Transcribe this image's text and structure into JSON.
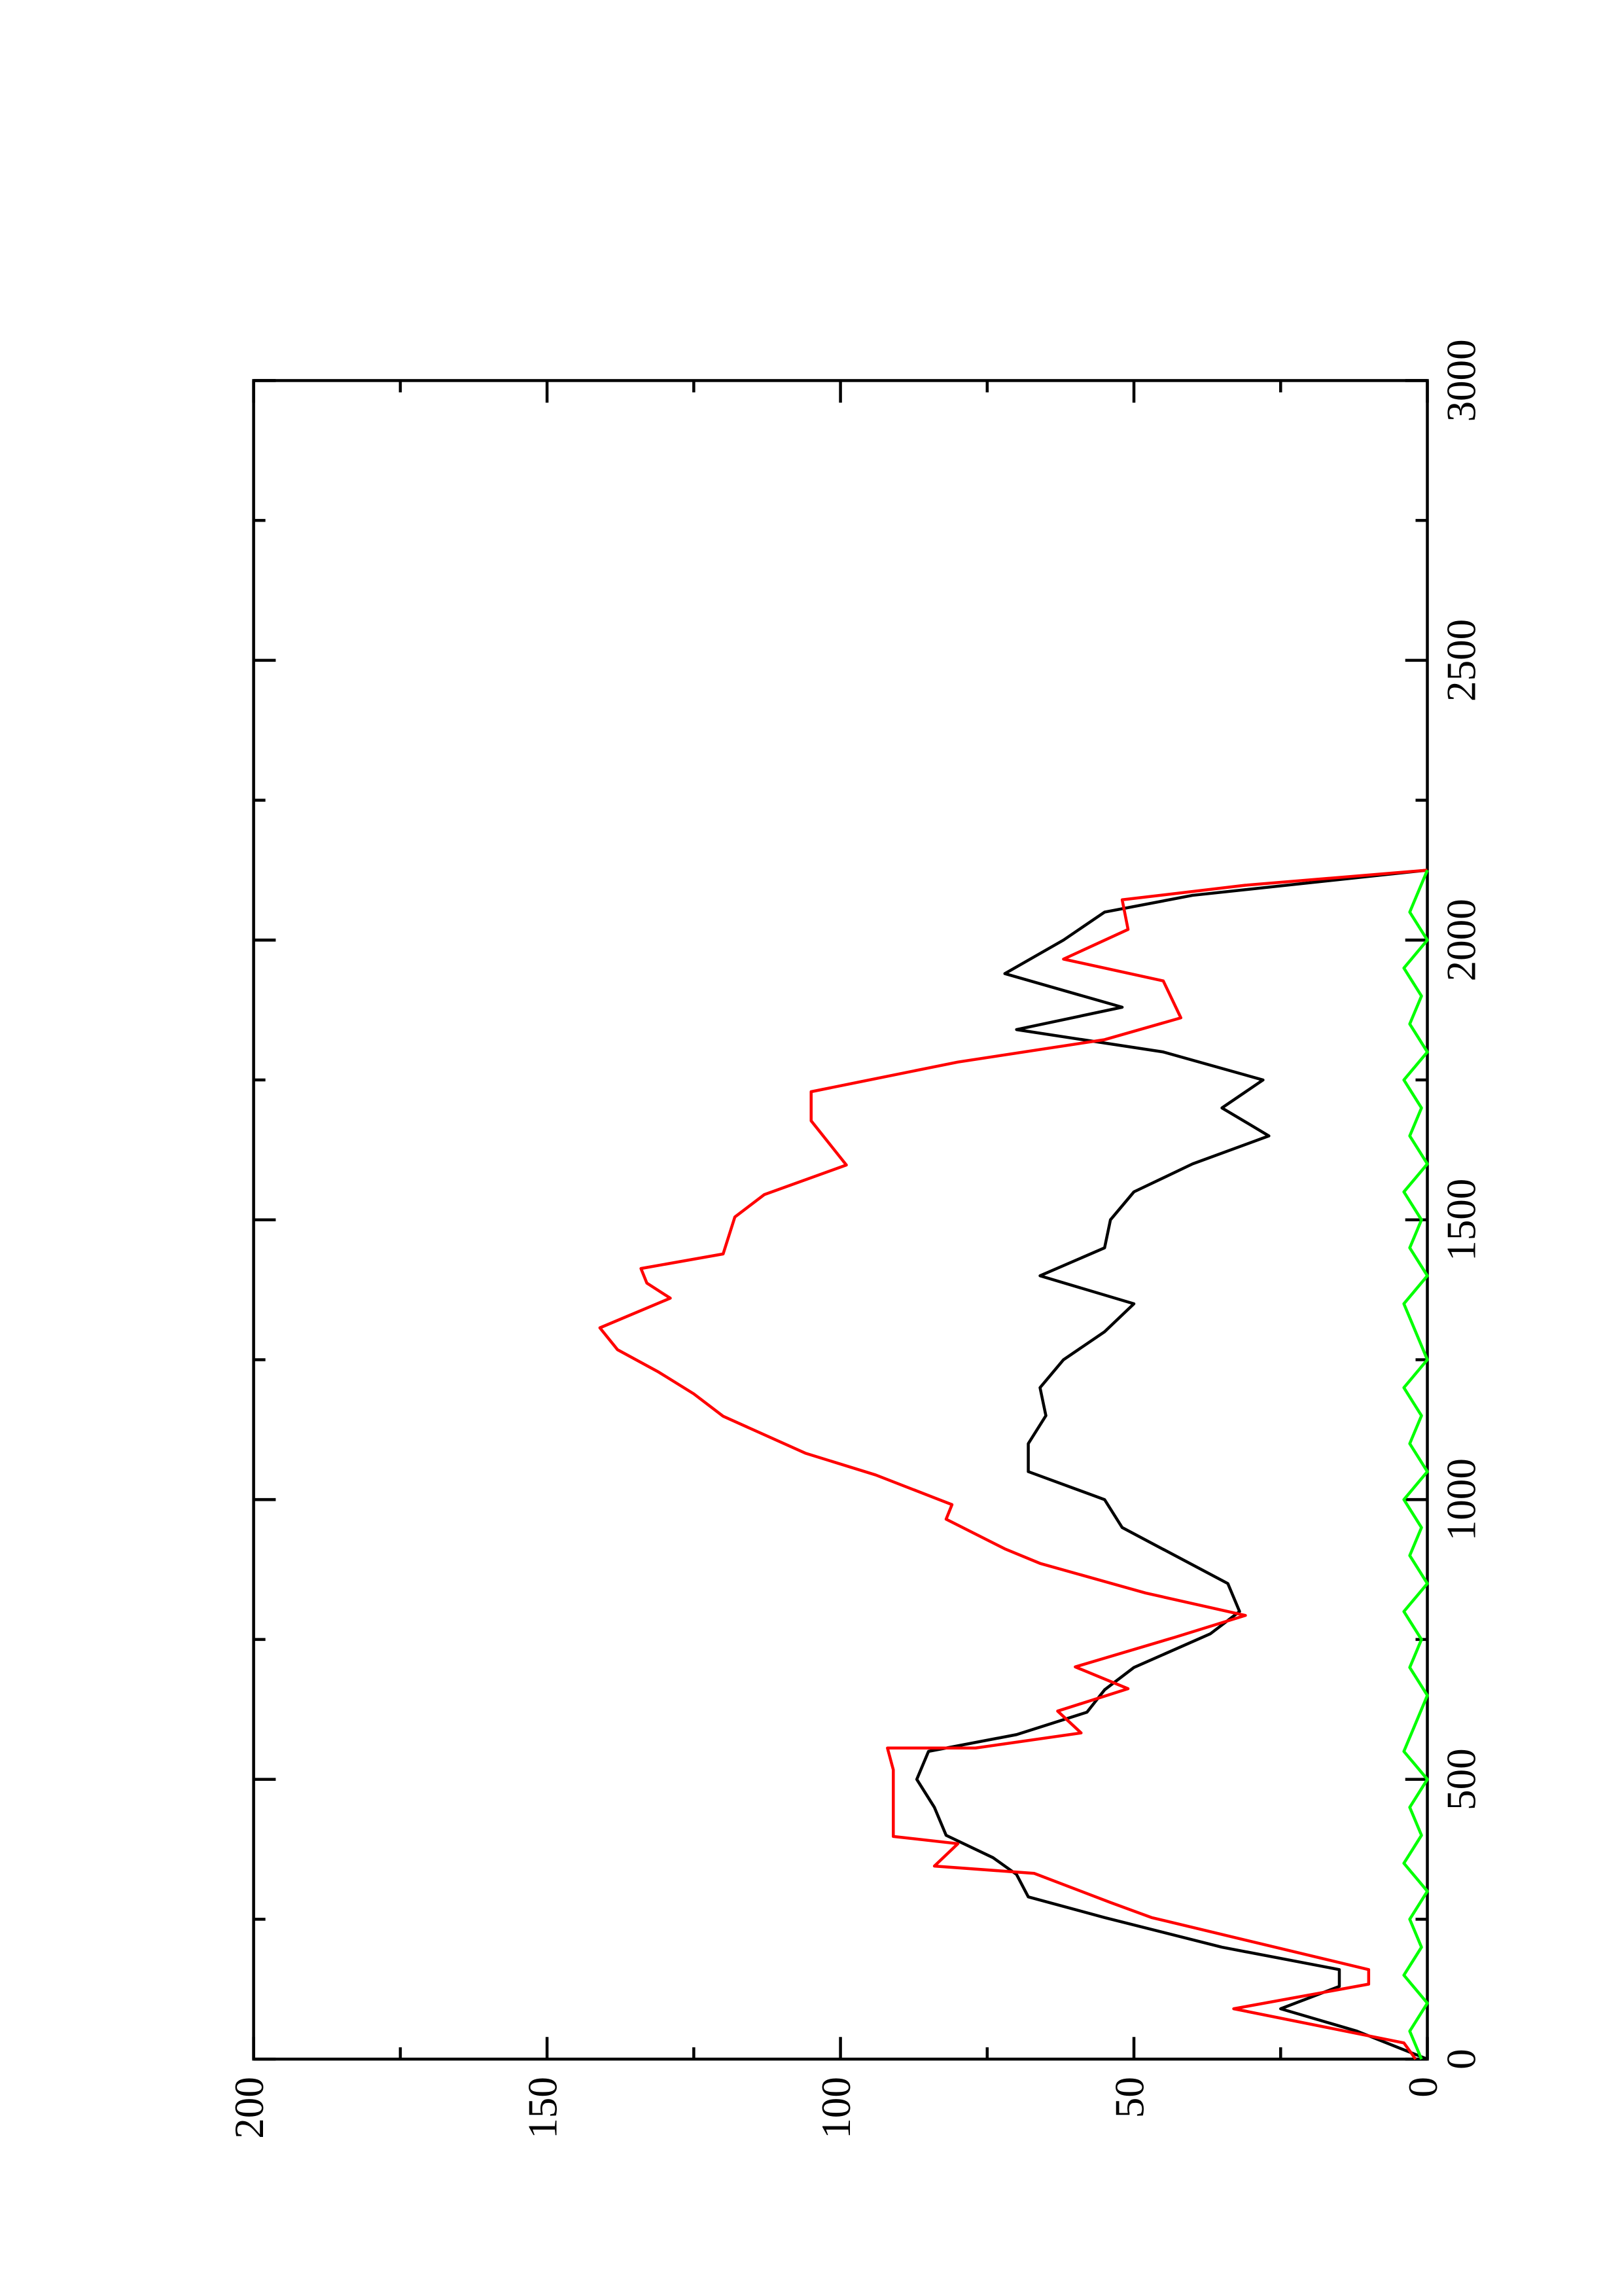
{
  "chart_data": {
    "type": "line",
    "xlim": [
      0,
      3000
    ],
    "xticks": [
      0,
      500,
      1000,
      1500,
      2000,
      2500,
      3000
    ],
    "x_minor_ticks": [
      250,
      750,
      1250,
      1750,
      2250,
      2750
    ],
    "ylim": [
      0,
      200
    ],
    "yticks": [
      0,
      50,
      100,
      150,
      200
    ],
    "y_minor_ticks": [
      25,
      75,
      125,
      175
    ],
    "series": [
      {
        "color": "#000000",
        "x": [
          0,
          50,
          90,
          130,
          160,
          200,
          253,
          290,
          330,
          360,
          400,
          450,
          500,
          550,
          580,
          620,
          660,
          700,
          760,
          800,
          850,
          900,
          950,
          1000,
          1050,
          1100,
          1150,
          1200,
          1250,
          1300,
          1350,
          1400,
          1450,
          1500,
          1550,
          1600,
          1650,
          1700,
          1750,
          1800,
          1840,
          1880,
          1940,
          2000,
          2050,
          2080,
          2125
        ],
        "values": [
          0,
          12,
          25,
          15,
          15,
          35,
          55,
          68,
          70,
          74,
          82,
          84,
          87,
          85,
          70,
          58,
          55,
          50,
          37,
          32,
          34,
          43,
          52,
          55,
          68,
          68,
          65,
          66,
          62,
          55,
          50,
          66,
          55,
          54,
          50,
          40,
          27,
          35,
          28,
          45,
          70,
          52,
          72,
          62,
          55,
          40,
          0
        ]
      },
      {
        "color": "#ff0000",
        "x": [
          0,
          29,
          90,
          134,
          160,
          253,
          280,
          332,
          345,
          385,
          398,
          517,
          556,
          556,
          583,
          622,
          662,
          701,
          754,
          793,
          833,
          886,
          912,
          965,
          991,
          1044,
          1083,
          1149,
          1189,
          1228,
          1268,
          1307,
          1360,
          1387,
          1413,
          1439,
          1505,
          1545,
          1598,
          1677,
          1729,
          1782,
          1822,
          1861,
          1927,
          1966,
          2019,
          2072,
          2098,
          2125
        ],
        "values": [
          2,
          4,
          33,
          10,
          10,
          47,
          54,
          67,
          84,
          80,
          91,
          91,
          92,
          77,
          59,
          63,
          51,
          60,
          43,
          31,
          48,
          66,
          72,
          82,
          81,
          94,
          106,
          120,
          125,
          131,
          138,
          141,
          129,
          133,
          134,
          120,
          118,
          113,
          99,
          105,
          105,
          80,
          55,
          42,
          45,
          62,
          51,
          52,
          31,
          0
        ]
      },
      {
        "color": "#00ff00",
        "x": [
          0,
          50,
          100,
          150,
          200,
          250,
          300,
          350,
          400,
          450,
          500,
          550,
          600,
          650,
          700,
          750,
          800,
          850,
          900,
          950,
          1000,
          1050,
          1100,
          1150,
          1200,
          1250,
          1300,
          1350,
          1400,
          1450,
          1500,
          1550,
          1600,
          1650,
          1700,
          1750,
          1800,
          1850,
          1900,
          1950,
          2000,
          2050,
          2100,
          2125
        ],
        "values": [
          1,
          3,
          0,
          4,
          1,
          3,
          0,
          4,
          1,
          3,
          0,
          4,
          2,
          0,
          3,
          1,
          4,
          0,
          3,
          1,
          4,
          0,
          3,
          1,
          4,
          0,
          2,
          4,
          0,
          3,
          1,
          4,
          0,
          3,
          1,
          4,
          0,
          3,
          1,
          4,
          0,
          3,
          1,
          0
        ]
      }
    ]
  }
}
